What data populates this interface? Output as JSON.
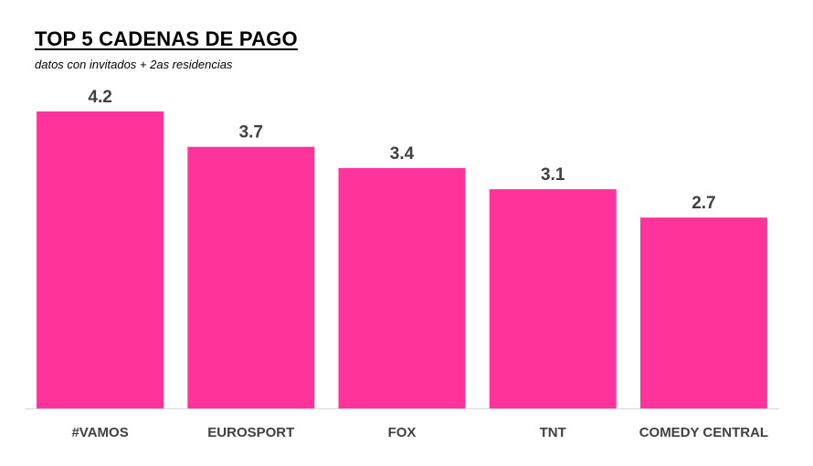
{
  "colors": {
    "bar": "#FF3399",
    "axis": "#D9D9D9",
    "label": "#404040"
  },
  "chart_data": {
    "type": "bar",
    "title": "TOP 5 CADENAS DE PAGO",
    "subtitle": "datos con invitados + 2as residencias",
    "xlabel": "",
    "ylabel": "",
    "categories": [
      "#VAMOS",
      "EUROSPORT",
      "FOX",
      "TNT",
      "COMEDY CENTRAL"
    ],
    "values": [
      4.2,
      3.7,
      3.4,
      3.1,
      2.7
    ],
    "data_labels": [
      "4.2",
      "3.7",
      "3.4",
      "3.1",
      "2.7"
    ],
    "ylim": [
      0,
      4.2
    ],
    "grid": false,
    "legend": "none"
  }
}
